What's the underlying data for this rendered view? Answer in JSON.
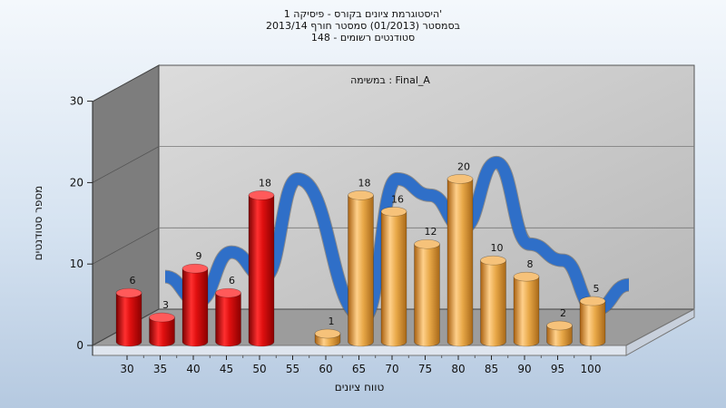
{
  "chart_data": {
    "type": "bar",
    "title_lines": [
      "היסטוגרמת ציונים בקורס - פיסיקה 1'",
      "בסמסטר (01/2013) סמסטר חורף 2013/14",
      "148 - סטודנטים רשומים"
    ],
    "inner_label": "במשימה : Final_A",
    "xlabel": "טווח ציונים",
    "ylabel": "מספר סטודנטים",
    "ylim": [
      0,
      30
    ],
    "y_ticks": [
      0,
      10,
      20,
      30
    ],
    "x_ticks": [
      "30",
      "35",
      "40",
      "45",
      "50",
      "55",
      "60",
      "65",
      "70",
      "75",
      "80",
      "85",
      "90",
      "95",
      "100"
    ],
    "bars": [
      {
        "x": 30,
        "value": 6,
        "label": "6",
        "color": "red"
      },
      {
        "x": 35,
        "value": 3,
        "label": "3",
        "color": "red"
      },
      {
        "x": 40,
        "value": 9,
        "label": "9",
        "color": "red"
      },
      {
        "x": 45,
        "value": 6,
        "label": "6",
        "color": "red"
      },
      {
        "x": 50,
        "value": 18,
        "label": "18",
        "color": "red"
      },
      {
        "x": 60,
        "value": 1,
        "label": "1",
        "color": "orange"
      },
      {
        "x": 65,
        "value": 18,
        "label": "18",
        "color": "orange"
      },
      {
        "x": 70,
        "value": 16,
        "label": "16",
        "color": "orange"
      },
      {
        "x": 75,
        "value": 12,
        "label": "12",
        "color": "orange"
      },
      {
        "x": 80,
        "value": 20,
        "label": "20",
        "color": "orange"
      },
      {
        "x": 85,
        "value": 10,
        "label": "10",
        "color": "orange"
      },
      {
        "x": 90,
        "value": 8,
        "label": "8",
        "color": "orange"
      },
      {
        "x": 95,
        "value": 2,
        "label": "2",
        "color": "orange"
      },
      {
        "x": 100,
        "value": 5,
        "label": "5",
        "color": "orange"
      }
    ],
    "colors": {
      "red": "#e01818",
      "orange": "#e8a848",
      "ribbon": "#2f6fc8",
      "ribbon_shadow": "#555555",
      "wall_back": "#c8c8c8",
      "wall_side": "#7a7a7a",
      "floor": "#9a9a9a"
    },
    "grid": true
  }
}
